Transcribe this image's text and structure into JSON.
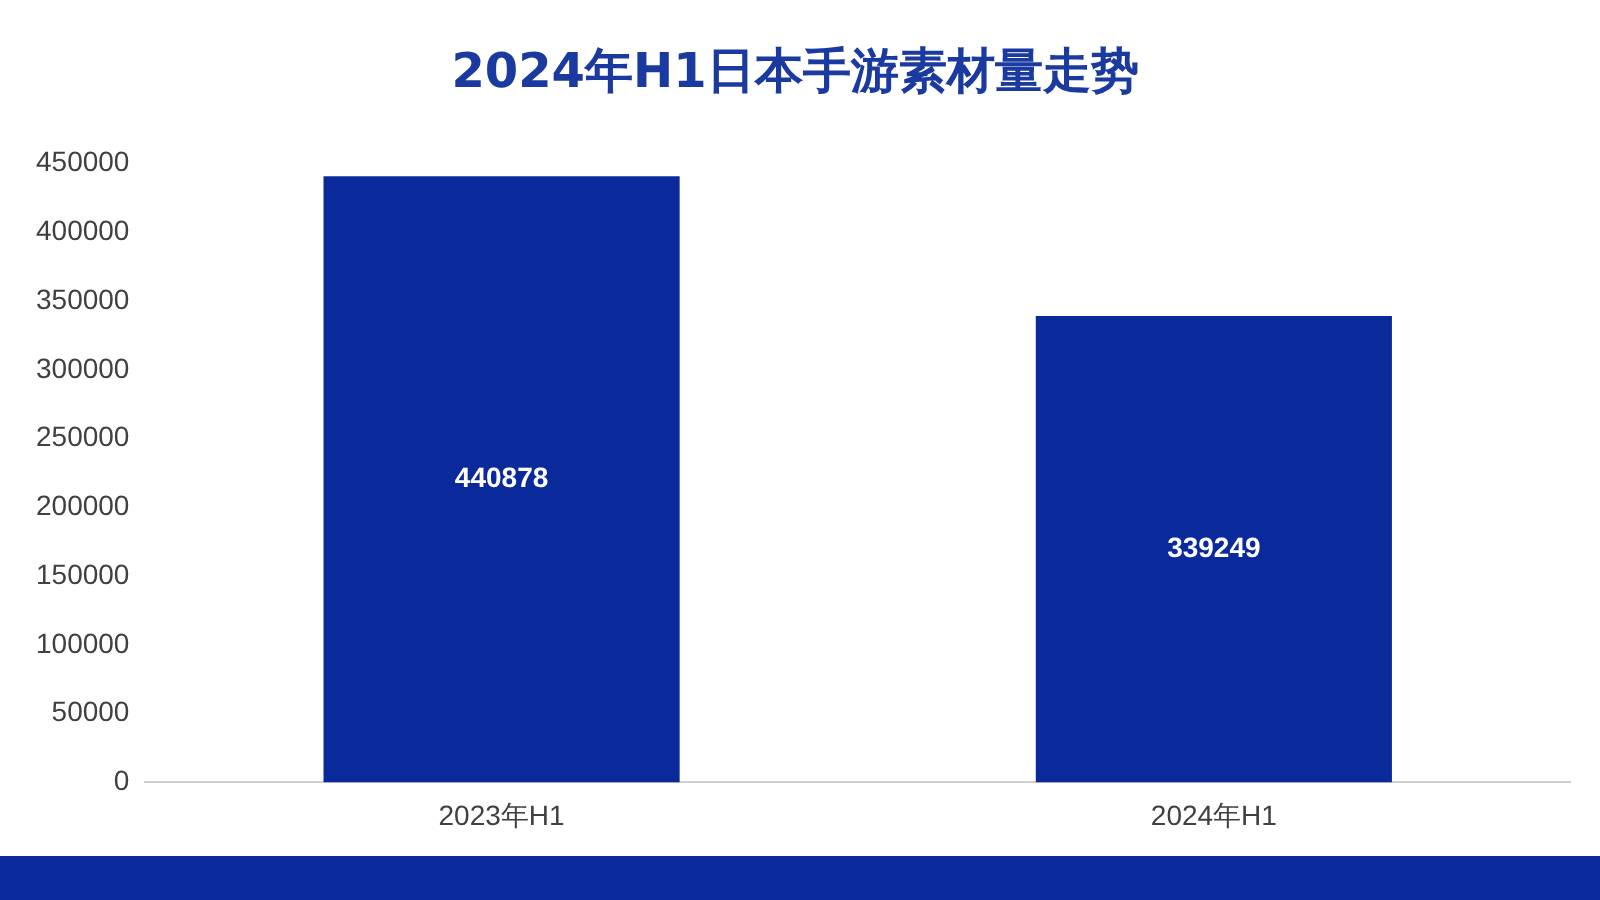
{
  "chart_data": {
    "type": "bar",
    "title": "2024年H1日本手游素材量走势",
    "categories": [
      "2023年H1",
      "2024年H1"
    ],
    "values": [
      440878,
      339249
    ],
    "color": "#0a2a9c",
    "ylim": [
      0,
      450000
    ],
    "yticks": [
      0,
      50000,
      100000,
      150000,
      200000,
      250000,
      300000,
      350000,
      400000,
      450000
    ],
    "grid": false,
    "legend": false,
    "data_labels": true
  }
}
